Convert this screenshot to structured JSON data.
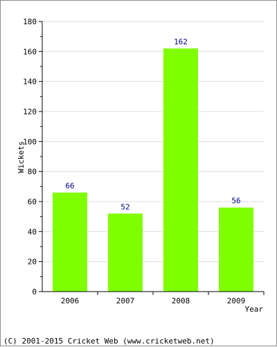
{
  "chart_data": {
    "type": "bar",
    "categories": [
      "2006",
      "2007",
      "2008",
      "2009"
    ],
    "values": [
      66,
      52,
      162,
      56
    ],
    "data_labels": [
      "66",
      "52",
      "162",
      "56"
    ],
    "title": "",
    "xlabel": "Year",
    "ylabel": "Wickets",
    "ylim": [
      0,
      180
    ],
    "yticks": [
      0,
      20,
      40,
      60,
      80,
      100,
      120,
      140,
      160,
      180
    ],
    "grid": true,
    "legend": "none",
    "colors": {
      "bar": "#80ff00",
      "grid": "#dcdcdc",
      "data_label": "#00008b",
      "axis": "#000000"
    }
  },
  "footer": {
    "copyright": "(C) 2001-2015 Cricket Web (www.cricketweb.net)"
  }
}
